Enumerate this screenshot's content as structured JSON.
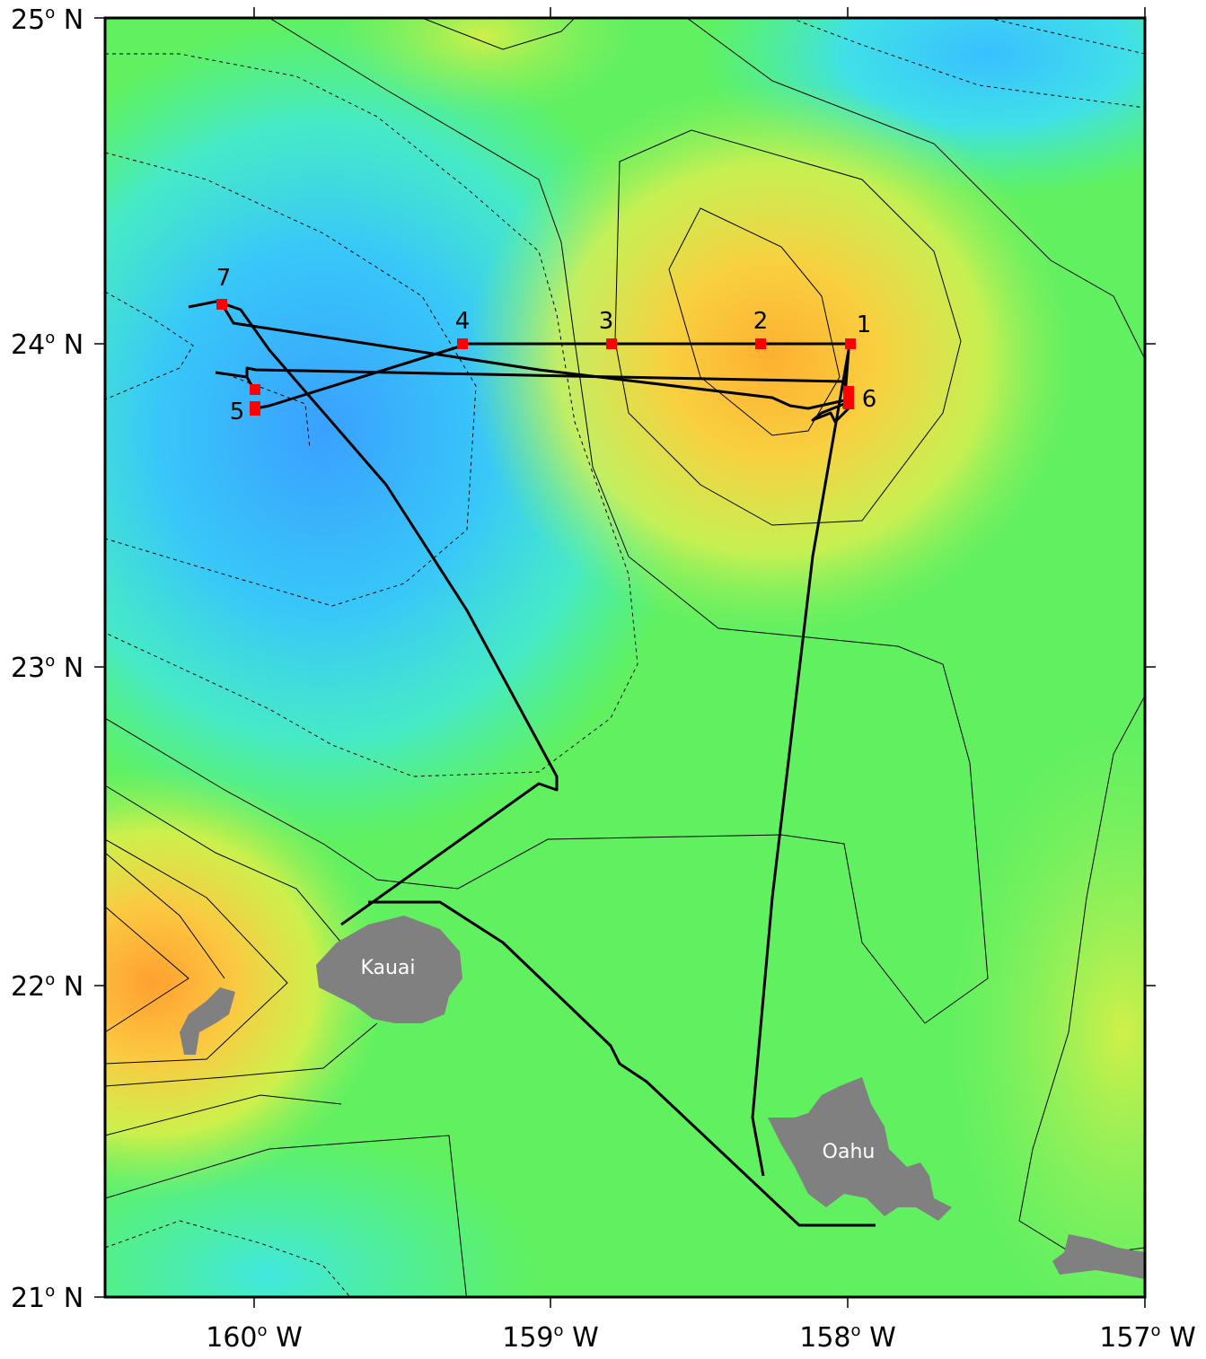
{
  "colors": {
    "land": "#808080",
    "track": "#000000",
    "station": "#ff0000",
    "contour": "#000000"
  },
  "axes": {
    "lat_labels": [
      {
        "value": 25,
        "deg": "25",
        "suffix": " N"
      },
      {
        "value": 24,
        "deg": "24",
        "suffix": " N"
      },
      {
        "value": 23,
        "deg": "23",
        "suffix": " N"
      },
      {
        "value": 22,
        "deg": "22",
        "suffix": " N"
      },
      {
        "value": 21,
        "deg": "21",
        "suffix": " N"
      }
    ],
    "lon_labels": [
      {
        "value": -160,
        "deg": "160",
        "suffix": " W"
      },
      {
        "value": -159,
        "deg": "159",
        "suffix": " W"
      },
      {
        "value": -158,
        "deg": "158",
        "suffix": " W"
      },
      {
        "value": -157,
        "deg": "157",
        "suffix": " W"
      }
    ],
    "degree_symbol": "o"
  },
  "islands": [
    {
      "name": "Kauai",
      "label": "Kauai"
    },
    {
      "name": "Oahu",
      "label": "Oahu"
    },
    {
      "name": "Niihau",
      "label": ""
    },
    {
      "name": "Molokai",
      "label": ""
    }
  ],
  "stations": [
    {
      "id": "1",
      "label": "1",
      "lon": -158.0,
      "lat": 24.0
    },
    {
      "id": "2",
      "label": "2",
      "lon": -158.3,
      "lat": 24.0
    },
    {
      "id": "3",
      "label": "3",
      "lon": -158.8,
      "lat": 24.0
    },
    {
      "id": "4",
      "label": "4",
      "lon": -159.3,
      "lat": 24.0
    },
    {
      "id": "5",
      "label": "5",
      "lon": -160.0,
      "lat": 23.8
    },
    {
      "id": "6",
      "label": "6",
      "lon": -158.0,
      "lat": 23.83
    },
    {
      "id": "7",
      "label": "7",
      "lon": -160.1,
      "lat": 24.12
    }
  ]
}
